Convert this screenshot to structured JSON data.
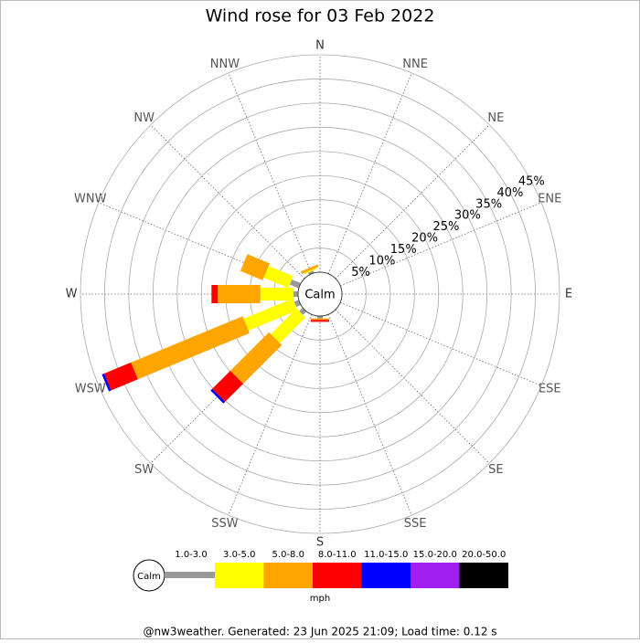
{
  "chart_data": {
    "type": "windrose",
    "title": "Wind rose for 03 Feb 2022",
    "categories": [
      "N",
      "NNE",
      "NE",
      "ENE",
      "E",
      "ESE",
      "SE",
      "SSE",
      "S",
      "SSW",
      "SW",
      "WSW",
      "W",
      "WNW",
      "NW",
      "NNW"
    ],
    "series": [
      {
        "name": "1.0-3.0",
        "color": "#999999",
        "values": [
          0,
          0,
          0,
          0,
          0,
          0,
          0,
          0,
          0.5,
          0,
          1,
          1,
          1,
          2,
          0,
          0.5
        ]
      },
      {
        "name": "3.0-5.0",
        "color": "#ffff00",
        "values": [
          0,
          0,
          0,
          0,
          0,
          0,
          0,
          0,
          0,
          0,
          7.5,
          11,
          6.8,
          5.5,
          0,
          0.3
        ]
      },
      {
        "name": "5.0-8.0",
        "color": "#ffa500",
        "values": [
          0,
          0,
          0,
          0,
          0,
          0,
          0,
          0,
          0.3,
          0,
          11.3,
          25,
          8.8,
          5,
          0,
          0.5
        ]
      },
      {
        "name": "8.0-11.0",
        "color": "#ff0000",
        "values": [
          0,
          0,
          0,
          0,
          0,
          0,
          0,
          0,
          0.4,
          0,
          5.3,
          6,
          1.3,
          0,
          0,
          0
        ]
      },
      {
        "name": "11.0-15.0",
        "color": "#0000ff",
        "values": [
          0,
          0,
          0,
          0,
          0,
          0,
          0,
          0,
          0,
          0,
          0.5,
          0.5,
          0,
          0,
          0,
          0
        ]
      },
      {
        "name": "15.0-20.0",
        "color": "#a020f0",
        "values": [
          0,
          0,
          0,
          0,
          0,
          0,
          0,
          0,
          0,
          0,
          0,
          0,
          0,
          0,
          0,
          0
        ]
      },
      {
        "name": "20.0-50.0",
        "color": "#000000",
        "values": [
          0,
          0,
          0,
          0,
          0,
          0,
          0,
          0,
          0,
          0,
          0,
          0,
          0,
          0,
          0,
          0
        ]
      }
    ],
    "rlim": [
      0,
      45
    ],
    "rticks": [
      {
        "value": 5,
        "label": "5%"
      },
      {
        "value": 10,
        "label": "10%"
      },
      {
        "value": 15,
        "label": "15%"
      },
      {
        "value": 20,
        "label": "20%"
      },
      {
        "value": 25,
        "label": "25%"
      },
      {
        "value": 30,
        "label": "30%"
      },
      {
        "value": 35,
        "label": "35%"
      },
      {
        "value": 40,
        "label": "40%"
      },
      {
        "value": 45,
        "label": "45%"
      }
    ],
    "center_label": "Calm",
    "unit": "mph",
    "footer": "@nw3weather. Generated: 23 Jun 2025 21:09; Load time: 0.12 s"
  }
}
